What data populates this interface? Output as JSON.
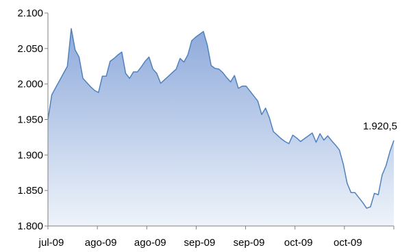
{
  "chart_data": {
    "type": "area",
    "title": "",
    "xlabel": "",
    "ylabel": "",
    "ylim": [
      1800,
      2100
    ],
    "y_ticks": [
      1800,
      1850,
      1900,
      1950,
      2000,
      2050,
      2100
    ],
    "y_tick_labels": [
      "1.800",
      "1.850",
      "1.900",
      "1.950",
      "2.000",
      "2.050",
      "2.100"
    ],
    "x_tick_labels": [
      "jul-09",
      "ago-09",
      "ago-09",
      "sep-09",
      "sep-09",
      "oct-09",
      "oct-09"
    ],
    "grid": false,
    "legend": "none",
    "colors": {
      "line": "#4f81bd",
      "fill_top": "#8eaadb",
      "fill_bottom": "#eef3fa"
    },
    "annotation": {
      "text": "1.920,5",
      "value": 1920.5
    },
    "series": [
      {
        "values": [
          1950,
          1985,
          1995,
          2005,
          2015,
          2025,
          2078,
          2048,
          2038,
          2008,
          2002,
          1996,
          1991,
          1988,
          2011,
          2011,
          2032,
          2036,
          2041,
          2045,
          2015,
          2008,
          2017,
          2017,
          2024,
          2032,
          2038,
          2021,
          2015,
          2001,
          2006,
          2011,
          2016,
          2021,
          2036,
          2031,
          2041,
          2061,
          2066,
          2070,
          2074,
          2055,
          2026,
          2022,
          2021,
          2016,
          2009,
          2003,
          2012,
          1994,
          1997,
          1997,
          1990,
          1983,
          1976,
          1957,
          1966,
          1952,
          1933,
          1928,
          1923,
          1919,
          1916,
          1928,
          1924,
          1919,
          1923,
          1927,
          1931,
          1918,
          1930,
          1921,
          1927,
          1920,
          1914,
          1907,
          1887,
          1860,
          1847,
          1847,
          1840,
          1833,
          1825,
          1827,
          1846,
          1844,
          1872,
          1885,
          1905,
          1920.5
        ]
      }
    ]
  }
}
